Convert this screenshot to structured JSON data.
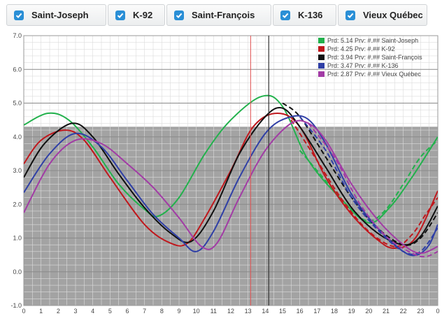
{
  "buttons": [
    {
      "label": "Saint-Joseph",
      "checked": true
    },
    {
      "label": "K-92",
      "checked": true
    },
    {
      "label": "Saint-François",
      "checked": true
    },
    {
      "label": "K-136",
      "checked": true
    },
    {
      "label": "Vieux Québec",
      "checked": true
    }
  ],
  "colors": {
    "checkbox": "#2a8fd6",
    "shaded_region": "#a3a3a3",
    "current_time_line": "#e05050",
    "cursor_line": "#333333"
  },
  "chart_data": {
    "type": "line",
    "x_tick_labels": [
      "0",
      "1",
      "2",
      "3",
      "4",
      "5",
      "6",
      "7",
      "8",
      "9",
      "10",
      "11",
      "12",
      "13",
      "14",
      "15",
      "16",
      "17",
      "18",
      "19",
      "20",
      "21",
      "22",
      "23",
      "0"
    ],
    "y_tick_labels": [
      "7.0",
      "6.0",
      "5.0",
      "4.0",
      "3.0",
      "2.0",
      "1.0",
      "0.0",
      "-1.0"
    ],
    "xlim": [
      0,
      24
    ],
    "ylim": [
      -1,
      7
    ],
    "grid": true,
    "legend_position": "top-right",
    "shaded_band": {
      "from": -1,
      "to": 4.3
    },
    "current_time": 13.15,
    "cursor_time": 14.2,
    "legend": [
      {
        "text": "Prd: 5.14 Prv: #.## Saint-Joseph",
        "color": "#22b14c"
      },
      {
        "text": "Prd: 4.25 Prv: #.## K-92",
        "color": "#c0171c"
      },
      {
        "text": "Prd: 3.94 Prv: #.## Saint-François",
        "color": "#111111"
      },
      {
        "text": "Prd: 3.47 Prv: #.## K-136",
        "color": "#2f3fa6"
      },
      {
        "text": "Prd: 2.87 Prv: #.## Vieux Québec",
        "color": "#a23ba5"
      }
    ],
    "series": [
      {
        "name": "Saint-Joseph",
        "color": "#22b14c",
        "x": [
          0,
          1.4,
          2.6,
          4,
          5.5,
          7,
          7.8,
          9,
          10.5,
          12,
          13.8,
          15,
          16.5,
          18.5,
          20,
          21.2,
          22.5,
          24
        ],
        "y": [
          4.35,
          4.7,
          4.5,
          3.7,
          2.6,
          1.85,
          1.65,
          2.2,
          3.5,
          4.5,
          5.2,
          4.9,
          3.3,
          2.1,
          1.45,
          1.9,
          2.8,
          4.0
        ],
        "forecast": {
          "x": [
            16,
            17,
            18,
            19,
            20,
            21,
            22,
            23,
            24
          ],
          "y": [
            3.6,
            3.0,
            2.4,
            1.85,
            1.5,
            1.85,
            2.6,
            3.4,
            3.9
          ]
        }
      },
      {
        "name": "K-92",
        "color": "#c0171c",
        "x": [
          0,
          1,
          2.4,
          3.5,
          5,
          7,
          8.5,
          9.5,
          10.5,
          12,
          13.3,
          14.7,
          16,
          17.5,
          19,
          20.5,
          21.5,
          22.7,
          24
        ],
        "y": [
          3.2,
          3.9,
          4.2,
          3.9,
          2.8,
          1.4,
          0.85,
          0.85,
          1.6,
          3.0,
          4.3,
          4.7,
          4.3,
          2.8,
          1.7,
          0.95,
          0.7,
          1.0,
          2.4
        ],
        "forecast": {
          "x": [
            15.5,
            17,
            18.5,
            20,
            21.5,
            22.5,
            23.3,
            24
          ],
          "y": [
            4.5,
            3.3,
            2.1,
            1.2,
            0.75,
            1.1,
            1.7,
            2.2
          ]
        }
      },
      {
        "name": "Saint-François",
        "color": "#111111",
        "x": [
          0,
          1.2,
          2.8,
          4,
          5.5,
          7,
          8.5,
          9.7,
          11,
          12.5,
          14,
          15,
          16,
          17.5,
          19,
          20.5,
          22,
          23,
          24
        ],
        "y": [
          2.8,
          3.8,
          4.4,
          4.0,
          2.9,
          1.9,
          1.15,
          0.9,
          1.8,
          3.5,
          4.6,
          4.85,
          4.3,
          3.1,
          1.9,
          1.15,
          0.8,
          1.05,
          1.95
        ],
        "forecast": {
          "x": [
            15,
            16,
            17.5,
            19,
            20.5,
            22,
            23,
            24
          ],
          "y": [
            5.0,
            4.6,
            3.4,
            2.2,
            1.3,
            0.8,
            1.0,
            1.75
          ]
        }
      },
      {
        "name": "K-136",
        "color": "#2f3fa6",
        "x": [
          0,
          1.5,
          3,
          4.5,
          6,
          7.5,
          9,
          10,
          11,
          12.5,
          14,
          15.2,
          16.4,
          17.5,
          19,
          20.5,
          22,
          22.8,
          23.5,
          24
        ],
        "y": [
          2.35,
          3.5,
          4.1,
          3.7,
          2.7,
          1.7,
          1.0,
          0.6,
          1.2,
          2.8,
          4.1,
          4.55,
          4.55,
          3.8,
          2.3,
          1.3,
          0.6,
          0.5,
          0.8,
          1.4
        ],
        "forecast": {
          "x": [
            16,
            17.5,
            19,
            20.5,
            22,
            23,
            24
          ],
          "y": [
            4.6,
            3.6,
            2.2,
            1.25,
            0.6,
            0.6,
            1.3
          ]
        }
      },
      {
        "name": "Vieux Québec",
        "color": "#a23ba5",
        "x": [
          0,
          1.5,
          3,
          4.5,
          6,
          7.5,
          9,
          10.3,
          11.2,
          12.5,
          14,
          15.5,
          16.5,
          17.5,
          19,
          20.5,
          22,
          23,
          24
        ],
        "y": [
          1.75,
          3.2,
          3.9,
          3.8,
          3.2,
          2.5,
          1.6,
          0.75,
          0.85,
          2.2,
          3.6,
          4.4,
          4.4,
          3.9,
          2.6,
          1.55,
          0.8,
          0.55,
          0.75
        ],
        "forecast": {
          "x": [
            16.5,
            18,
            19.5,
            21,
            22.5,
            23.3,
            24
          ],
          "y": [
            4.4,
            3.4,
            2.0,
            1.05,
            0.55,
            0.45,
            0.6
          ]
        }
      }
    ]
  }
}
